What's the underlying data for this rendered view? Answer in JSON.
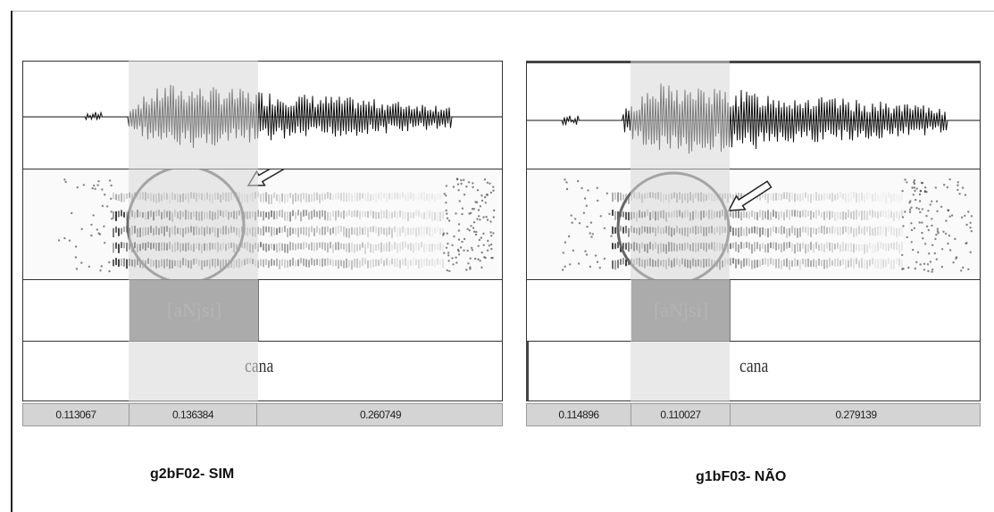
{
  "panels": [
    {
      "caption": "g2bF02- SIM",
      "segment_label": "[aNjsi]",
      "word": "cana",
      "durations": [
        "0.113067",
        "0.136384",
        "0.260749"
      ]
    },
    {
      "caption": "g1bF03- NÃO",
      "segment_label": "[aNjsi]",
      "word": "cana",
      "durations": [
        "0.114896",
        "0.110027",
        "0.279139"
      ]
    }
  ],
  "colors": {
    "segment_fill": "#777777",
    "highlight": "#d7d7d7",
    "circle": "#666666",
    "arrow": "#ffffff"
  },
  "icons": [
    "circle-annotation",
    "arrow-annotation"
  ]
}
